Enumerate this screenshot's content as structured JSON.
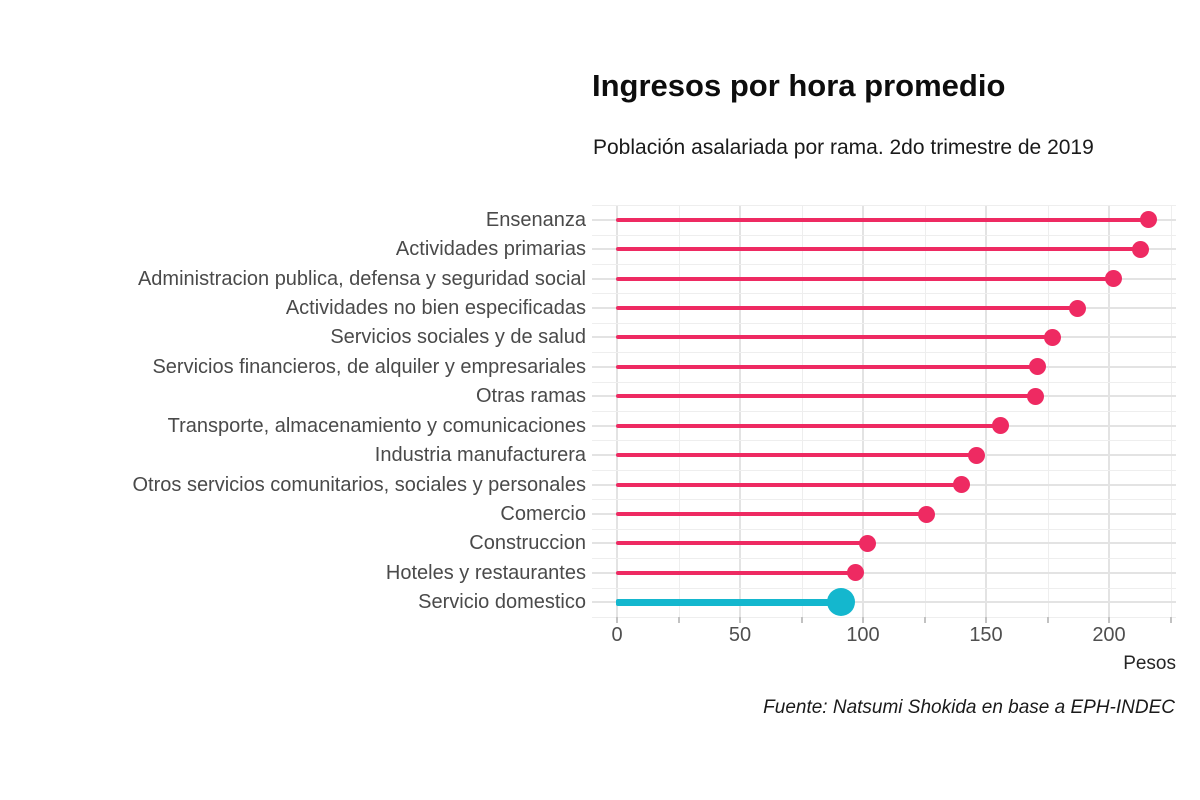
{
  "header": {
    "title": "Ingresos por hora promedio",
    "subtitle": "Población asalariada por rama. 2do trimestre de 2019"
  },
  "footer": {
    "source_note": "Fuente: Natsumi Shokida en base a EPH-INDEC"
  },
  "chart_data": {
    "type": "bar",
    "variant": "lollipop",
    "orientation": "horizontal",
    "title": "Ingresos por hora promedio",
    "subtitle": "Población asalariada por rama. 2do trimestre de 2019",
    "xlabel": "Pesos",
    "ylabel": "",
    "xlim": [
      -10,
      227
    ],
    "x_ticks_major": [
      0,
      50,
      100,
      150,
      200
    ],
    "x_ticks_minor": [
      25,
      75,
      125,
      175,
      225
    ],
    "grid": "major and minor, light gray, white background",
    "legend_position": "none",
    "categories": [
      "Ensenanza",
      "Actividades primarias",
      "Administracion publica, defensa y seguridad social",
      "Actividades no bien especificadas",
      "Servicios sociales y de salud",
      "Servicios financieros, de alquiler y empresariales",
      "Otras ramas",
      "Transporte, almacenamiento y comunicaciones",
      "Industria manufacturera",
      "Otros servicios comunitarios, sociales y personales",
      "Comercio",
      "Construccion",
      "Hoteles y restaurantes",
      "Servicio domestico"
    ],
    "values": [
      216,
      213,
      202,
      187,
      177,
      171,
      170,
      156,
      146,
      140,
      126,
      102,
      97,
      91
    ],
    "highlight_category": "Servicio domestico",
    "highlight_index": 13,
    "colors": {
      "series": "#ee2a62",
      "highlight": "#14b7ce",
      "grid_major": "#e3e3e3",
      "grid_minor": "#eeeeee",
      "axis_text": "#4f4f4f",
      "category_text": "#4a4a4a"
    }
  }
}
